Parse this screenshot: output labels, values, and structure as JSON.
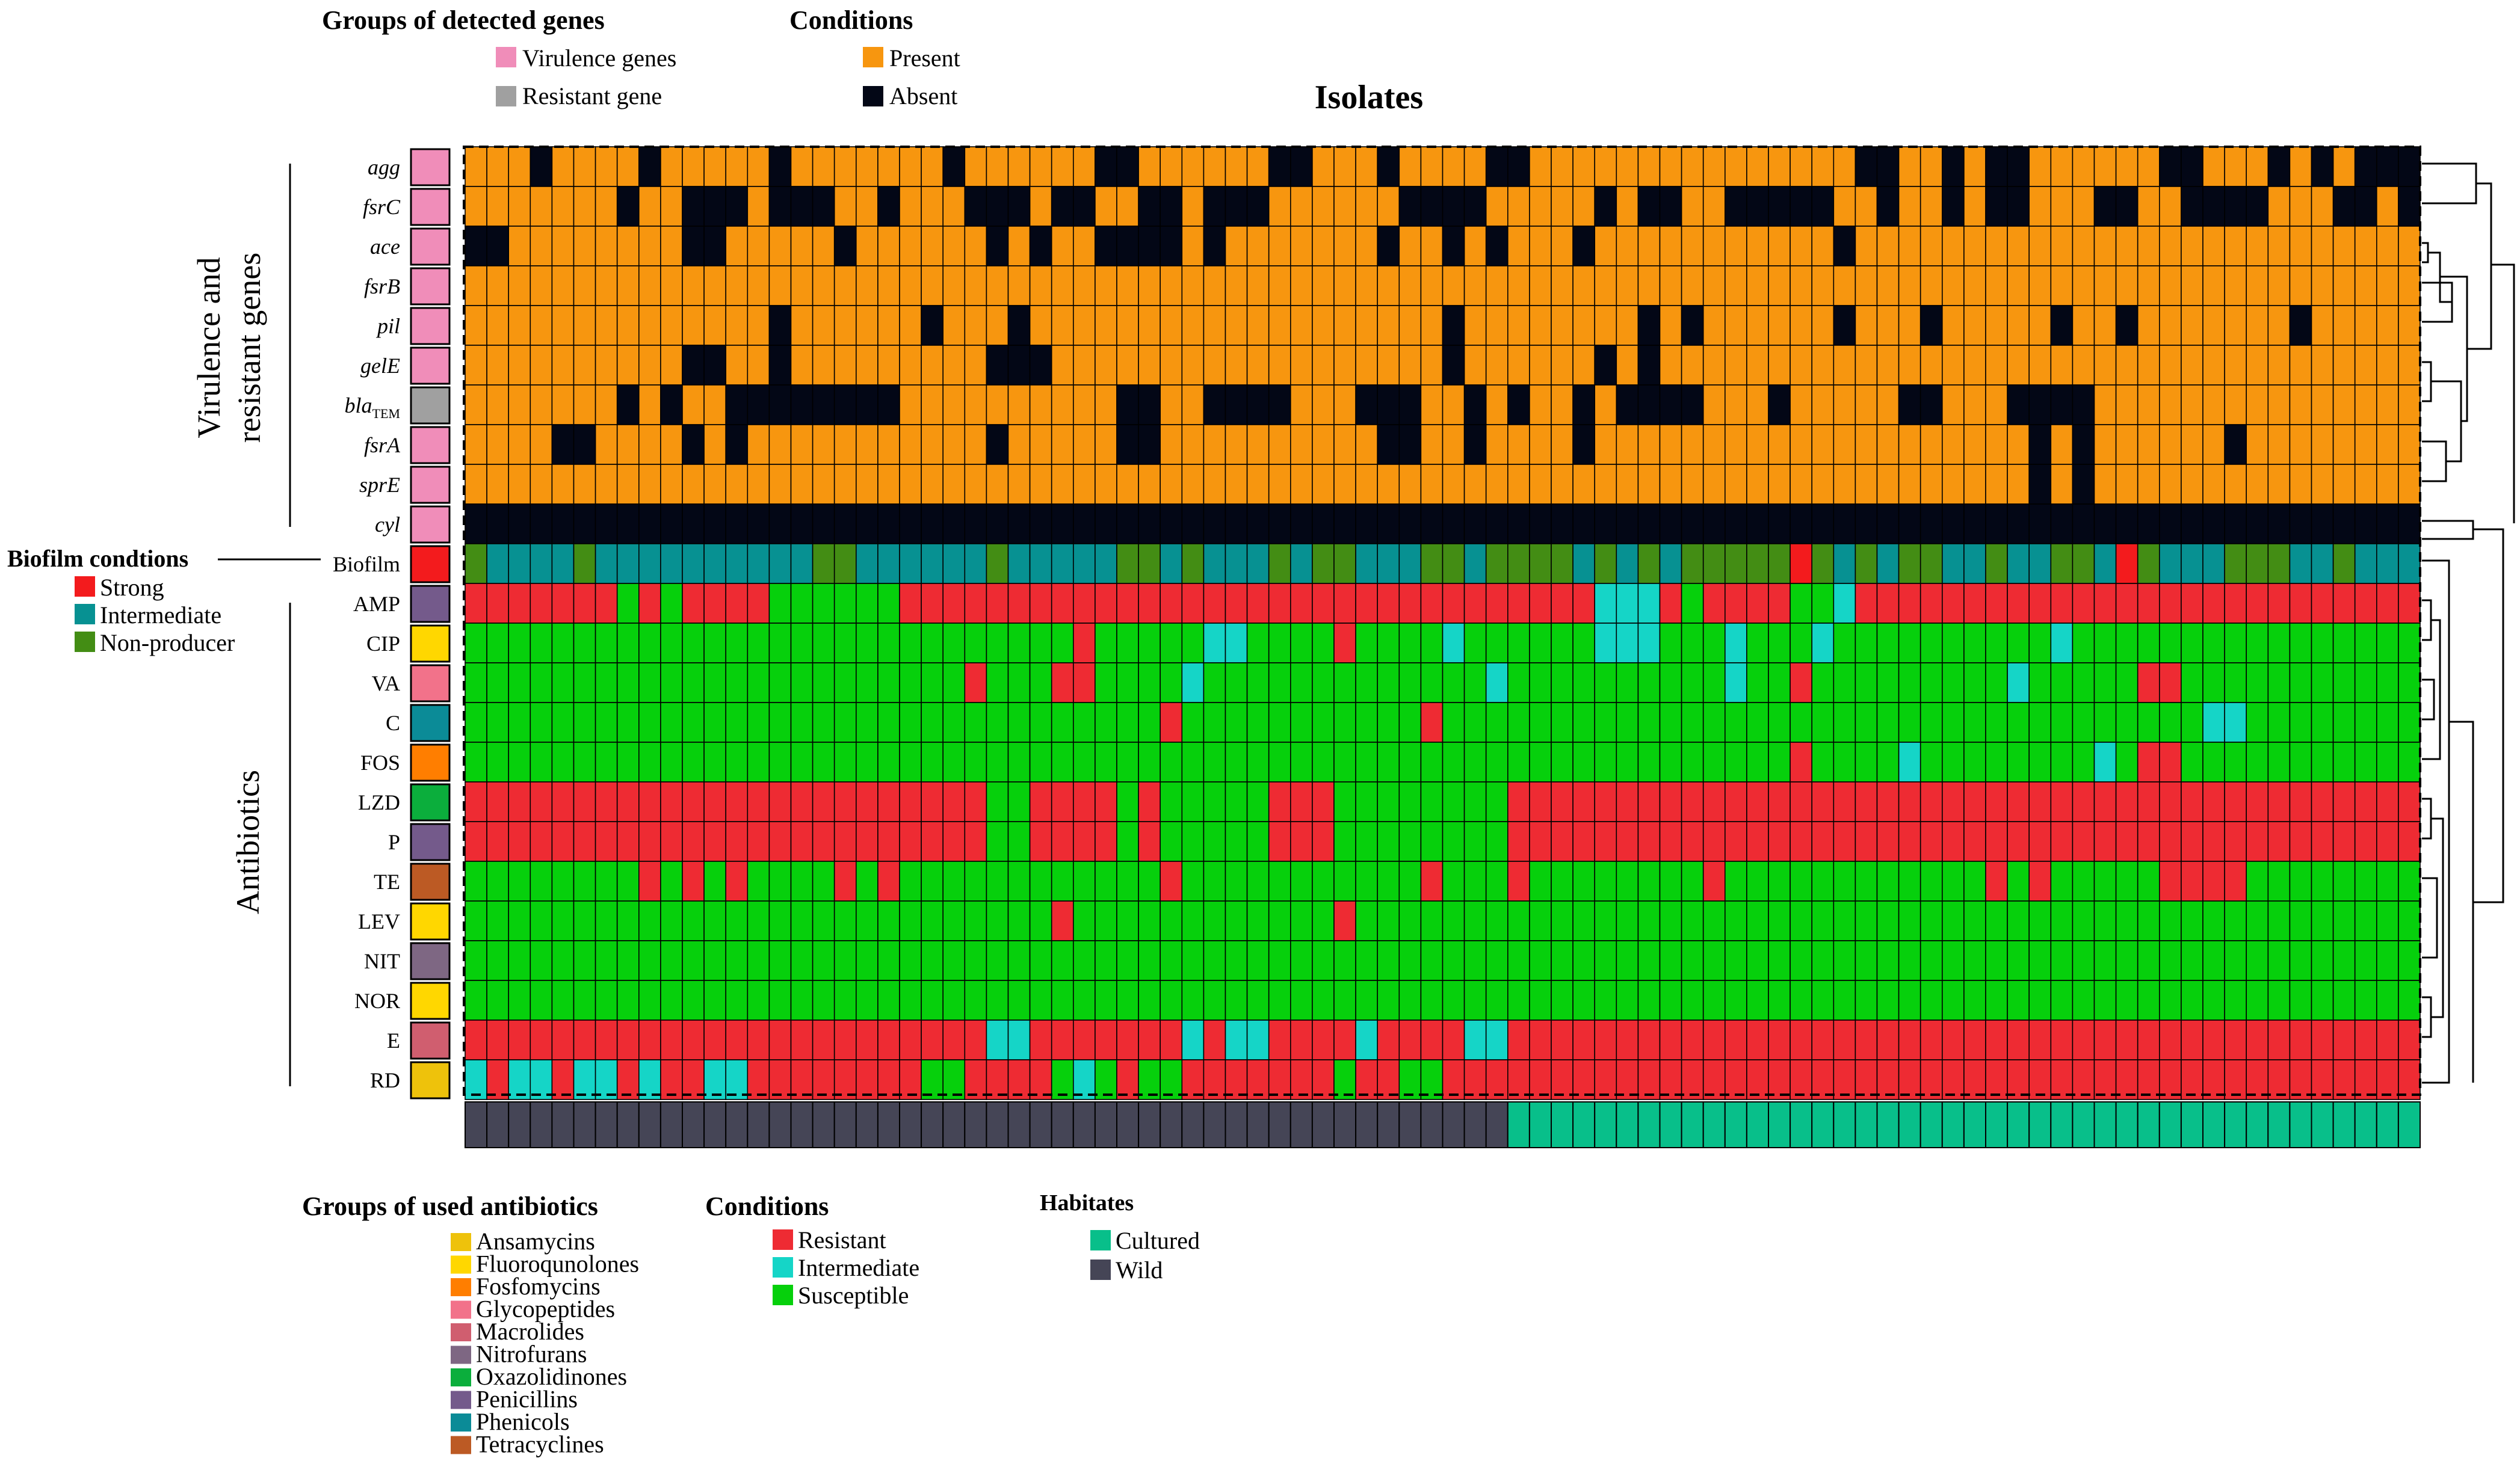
{
  "chart_data": {
    "type": "heatmap",
    "title": "Isolates",
    "n_isolates": 90,
    "gene_section_label": [
      "Virulence and",
      "resistant genes"
    ],
    "antibiotic_section_label": "Antibiotics",
    "gene_rows": [
      {
        "name": "agg",
        "group": "virulence",
        "absent": [
          4,
          9,
          15,
          23,
          30,
          31,
          38,
          39,
          43,
          48,
          49,
          65,
          66,
          69,
          71,
          72,
          79,
          80,
          84,
          86,
          88,
          89,
          90
        ]
      },
      {
        "name": "fsrC",
        "group": "virulence",
        "absent": [
          8,
          11,
          12,
          13,
          15,
          16,
          17,
          20,
          24,
          25,
          26,
          28,
          29,
          32,
          33,
          35,
          36,
          37,
          44,
          45,
          46,
          47,
          53,
          55,
          56,
          59,
          60,
          61,
          62,
          63,
          66,
          69,
          71,
          72,
          76,
          77,
          80,
          81,
          82,
          83,
          87,
          88,
          90
        ]
      },
      {
        "name": "ace",
        "group": "virulence",
        "absent": [
          1,
          2,
          11,
          12,
          18,
          25,
          27,
          30,
          31,
          32,
          33,
          35,
          43,
          46,
          48,
          52,
          64
        ]
      },
      {
        "name": "fsrB",
        "group": "virulence",
        "absent": []
      },
      {
        "name": "pil",
        "group": "virulence",
        "absent": [
          15,
          22,
          26,
          46,
          55,
          57,
          64,
          68,
          74,
          77,
          85
        ]
      },
      {
        "name": "gelE",
        "group": "virulence",
        "absent": [
          11,
          12,
          15,
          25,
          26,
          27,
          46,
          53,
          55
        ]
      },
      {
        "name": "blaTEM",
        "group": "resistant",
        "absent": [
          8,
          10,
          13,
          14,
          15,
          16,
          17,
          18,
          19,
          20,
          31,
          32,
          35,
          36,
          37,
          38,
          42,
          43,
          44,
          47,
          49,
          52,
          54,
          55,
          56,
          57,
          61,
          67,
          68,
          72,
          73,
          74,
          75
        ]
      },
      {
        "name": "fsrA",
        "group": "virulence",
        "absent": [
          5,
          6,
          11,
          13,
          25,
          31,
          32,
          43,
          44,
          47,
          52,
          73,
          75,
          82
        ]
      },
      {
        "name": "sprE",
        "group": "virulence",
        "absent": [
          73,
          75
        ]
      },
      {
        "name": "cyl",
        "group": "virulence",
        "absent": [
          1,
          2,
          3,
          4,
          5,
          6,
          7,
          8,
          9,
          10,
          11,
          12,
          13,
          14,
          15,
          16,
          17,
          18,
          19,
          20,
          21,
          22,
          23,
          24,
          25,
          26,
          27,
          28,
          29,
          30,
          31,
          32,
          33,
          34,
          35,
          36,
          37,
          38,
          39,
          40,
          41,
          42,
          43,
          44,
          45,
          46,
          47,
          48,
          49,
          50,
          51,
          52,
          53,
          54,
          55,
          56,
          57,
          58,
          59,
          60,
          61,
          62,
          63,
          64,
          65,
          66,
          67,
          68,
          69,
          70,
          71,
          72,
          73,
          74,
          75,
          76,
          77,
          78,
          79,
          80,
          81,
          82,
          83,
          84,
          85,
          86,
          87,
          88,
          89,
          90
        ]
      }
    ],
    "biofilm_row": {
      "name": "Biofilm",
      "strong": [
        62,
        77
      ],
      "non_producer": [
        1,
        6,
        17,
        18,
        25,
        31,
        32,
        34,
        38,
        40,
        41,
        45,
        46,
        48,
        49,
        50,
        51,
        53,
        55,
        57,
        58,
        59,
        60,
        61,
        63,
        65,
        67,
        68,
        71,
        74,
        75,
        78,
        82,
        83,
        84,
        87
      ]
    },
    "antibiotic_rows": [
      {
        "name": "AMP",
        "group": "Penicillins",
        "susceptible": [
          8,
          10,
          15,
          16,
          17,
          18,
          19,
          20
        ],
        "intermediate": [
          53,
          54,
          55,
          64
        ],
        "resistant_is_default": true,
        "extra_susceptible": [
          57,
          62,
          63
        ]
      },
      {
        "name": "CIP",
        "group": "Fluoroqunolones",
        "resistant": [
          29,
          41
        ],
        "intermediate": [
          35,
          36,
          46,
          53,
          54,
          55,
          59,
          63,
          74
        ]
      },
      {
        "name": "VA",
        "group": "Glycopeptides",
        "resistant": [
          24,
          28,
          29,
          62,
          78,
          79
        ],
        "intermediate": [
          34,
          48,
          59,
          72
        ]
      },
      {
        "name": "C",
        "group": "Phenicols",
        "resistant": [
          33,
          45
        ],
        "intermediate": [
          81,
          82
        ]
      },
      {
        "name": "FOS",
        "group": "Fosfomycins",
        "resistant": [
          62,
          78,
          79
        ],
        "intermediate": [
          67,
          76
        ]
      },
      {
        "name": "LZD",
        "group": "Oxazolidinones",
        "susceptible": [
          25,
          26,
          31,
          33,
          34,
          35,
          36,
          37,
          41,
          42,
          43,
          44,
          45,
          46,
          47,
          48
        ]
      },
      {
        "name": "P",
        "group": "Penicillins",
        "susceptible": [
          25,
          26,
          31,
          33,
          34,
          35,
          36,
          37,
          41,
          42,
          43,
          44,
          45,
          46,
          47,
          48
        ]
      },
      {
        "name": "TE",
        "group": "Tetracyclines",
        "resistant": [
          9,
          11,
          13,
          18,
          20,
          33,
          45,
          49,
          58,
          71,
          73,
          79,
          80,
          81,
          82
        ]
      },
      {
        "name": "LEV",
        "group": "Fluoroqunolones",
        "resistant": [
          28,
          41
        ]
      },
      {
        "name": "NIT",
        "group": "Nitrofurans",
        "resistant": []
      },
      {
        "name": "NOR",
        "group": "Fluoroqunolones",
        "resistant": []
      },
      {
        "name": "E",
        "group": "Macrolides",
        "intermediate": [
          25,
          26,
          34,
          36,
          37,
          42,
          47,
          48
        ]
      },
      {
        "name": "RD",
        "group": "Ansamycins",
        "intermediate": [
          1,
          3,
          4,
          6,
          7,
          9,
          12,
          13,
          29
        ],
        "susceptible": [
          22,
          23,
          28,
          30,
          32,
          33,
          41,
          44,
          45
        ]
      }
    ],
    "habitat": {
      "wild_count": 48,
      "cultured_count": 42
    }
  },
  "legends": {
    "genes_title": "Groups of detected genes",
    "genes_items": [
      {
        "label": "Virulence genes",
        "color": "#F08DB9"
      },
      {
        "label": "Resistant gene",
        "color": "#A0A0A0"
      }
    ],
    "conditions_top_title": "Conditions",
    "conditions_top_items": [
      {
        "label": "Present",
        "color": "#F7960F"
      },
      {
        "label": "Absent",
        "color": "#030716"
      }
    ],
    "biofilm_title": "Biofilm condtions",
    "biofilm_items": [
      {
        "label": "Strong",
        "color": "#F31B1D"
      },
      {
        "label": "Intermediate",
        "color": "#079192"
      },
      {
        "label": "Non-producer",
        "color": "#438D14"
      }
    ],
    "antibiotics_title": "Groups of used antibiotics",
    "antibiotics_items": [
      {
        "label": "Ansamycins",
        "color": "#EEC20B"
      },
      {
        "label": "Fluoroqunolones",
        "color": "#FFD700"
      },
      {
        "label": "Fosfomycins",
        "color": "#FF7E00"
      },
      {
        "label": "Glycopeptides",
        "color": "#F2728A"
      },
      {
        "label": "Macrolides",
        "color": "#D05E6F"
      },
      {
        "label": "Nitrofurans",
        "color": "#7E6783"
      },
      {
        "label": "Oxazolidinones",
        "color": "#0BAE3C"
      },
      {
        "label": "Penicillins",
        "color": "#745A8B"
      },
      {
        "label": "Phenicols",
        "color": "#0B8B97"
      },
      {
        "label": "Tetracyclines",
        "color": "#BC5A24"
      }
    ],
    "conditions_bottom_title": "Conditions",
    "conditions_bottom_items": [
      {
        "label": "Resistant",
        "color": "#EE2B33"
      },
      {
        "label": "Intermediate",
        "color": "#15D5C7"
      },
      {
        "label": "Susceptible",
        "color": "#06D00C"
      }
    ],
    "habitats_title": "Habitates",
    "habitats_items": [
      {
        "label": "Cultured",
        "color": "#08BF8A"
      },
      {
        "label": "Wild",
        "color": "#454556"
      }
    ]
  },
  "colors": {
    "present": "#F7960F",
    "absent": "#030716",
    "resistant": "#EE2B33",
    "intermediate": "#15D5C7",
    "susceptible": "#06D00C",
    "bf_strong": "#F31B1D",
    "bf_intermediate": "#079192",
    "bf_non": "#438D14",
    "virulence": "#F08DB9",
    "resistant_gene": "#A0A0A0",
    "wild": "#454556",
    "cultured": "#08BF8A"
  }
}
